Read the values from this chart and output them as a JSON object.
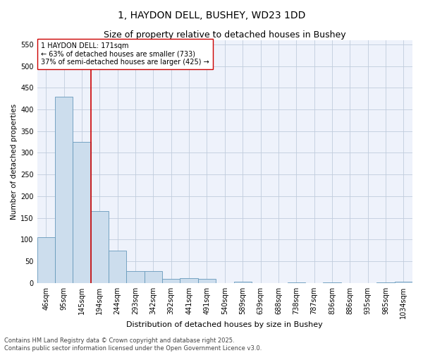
{
  "title": "1, HAYDON DELL, BUSHEY, WD23 1DD",
  "subtitle": "Size of property relative to detached houses in Bushey",
  "xlabel": "Distribution of detached houses by size in Bushey",
  "ylabel": "Number of detached properties",
  "categories": [
    "46sqm",
    "95sqm",
    "145sqm",
    "194sqm",
    "244sqm",
    "293sqm",
    "342sqm",
    "392sqm",
    "441sqm",
    "491sqm",
    "540sqm",
    "589sqm",
    "639sqm",
    "688sqm",
    "738sqm",
    "787sqm",
    "836sqm",
    "886sqm",
    "935sqm",
    "985sqm",
    "1034sqm"
  ],
  "values": [
    105,
    430,
    325,
    165,
    75,
    28,
    27,
    10,
    11,
    10,
    0,
    2,
    0,
    0,
    1,
    0,
    1,
    0,
    0,
    1,
    2
  ],
  "bar_color": "#ccdded",
  "bar_edge_color": "#6699bb",
  "red_line_x": 2.5,
  "annotation_text": "1 HAYDON DELL: 171sqm\n← 63% of detached houses are smaller (733)\n37% of semi-detached houses are larger (425) →",
  "annotation_box_color": "#ffffff",
  "annotation_box_edge": "#cc0000",
  "annotation_text_color": "#000000",
  "red_line_color": "#cc0000",
  "ylim": [
    0,
    560
  ],
  "yticks": [
    0,
    50,
    100,
    150,
    200,
    250,
    300,
    350,
    400,
    450,
    500,
    550
  ],
  "background_color": "#eef2fb",
  "grid_color": "#c0ccdd",
  "footer": "Contains HM Land Registry data © Crown copyright and database right 2025.\nContains public sector information licensed under the Open Government Licence v3.0.",
  "title_fontsize": 10,
  "subtitle_fontsize": 9,
  "xlabel_fontsize": 8,
  "ylabel_fontsize": 7.5,
  "tick_fontsize": 7,
  "footer_fontsize": 6,
  "annot_fontsize": 7
}
